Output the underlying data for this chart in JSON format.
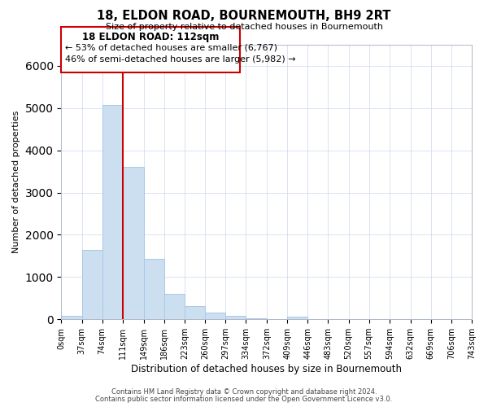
{
  "title": "18, ELDON ROAD, BOURNEMOUTH, BH9 2RT",
  "subtitle": "Size of property relative to detached houses in Bournemouth",
  "xlabel": "Distribution of detached houses by size in Bournemouth",
  "ylabel": "Number of detached properties",
  "bar_edges": [
    0,
    37,
    74,
    111,
    149,
    186,
    223,
    260,
    297,
    334,
    372,
    409,
    446,
    483,
    520,
    557,
    594,
    632,
    669,
    706,
    743
  ],
  "bar_heights": [
    75,
    1650,
    5075,
    3600,
    1430,
    610,
    305,
    155,
    80,
    30,
    10,
    55,
    0,
    0,
    0,
    0,
    0,
    0,
    0,
    0
  ],
  "bar_color": "#ccdff0",
  "bar_edge_color": "#a8c8e8",
  "vline_x": 111,
  "vline_color": "#cc0000",
  "ylim": [
    0,
    6500
  ],
  "annotation_title": "18 ELDON ROAD: 112sqm",
  "annotation_line1": "← 53% of detached houses are smaller (6,767)",
  "annotation_line2": "46% of semi-detached houses are larger (5,982) →",
  "footer_line1": "Contains HM Land Registry data © Crown copyright and database right 2024.",
  "footer_line2": "Contains public sector information licensed under the Open Government Licence v3.0.",
  "tick_labels": [
    "0sqm",
    "37sqm",
    "74sqm",
    "111sqm",
    "149sqm",
    "186sqm",
    "223sqm",
    "260sqm",
    "297sqm",
    "334sqm",
    "372sqm",
    "409sqm",
    "446sqm",
    "483sqm",
    "520sqm",
    "557sqm",
    "594sqm",
    "632sqm",
    "669sqm",
    "706sqm",
    "743sqm"
  ],
  "background_color": "#ffffff",
  "grid_color": "#ccd8ec"
}
